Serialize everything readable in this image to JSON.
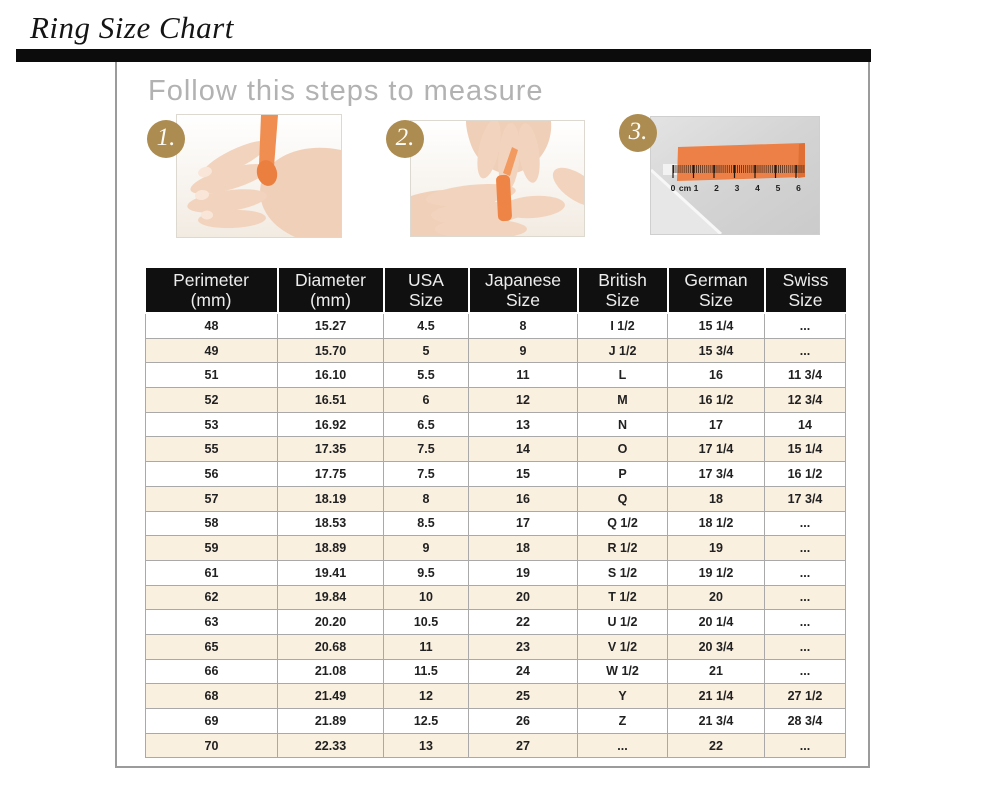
{
  "page": {
    "title": "Ring Size Chart"
  },
  "instructions": {
    "heading": "Follow this steps to measure",
    "steps": [
      {
        "number": "1.",
        "photo": "hand-with-paper-strip-around-finger"
      },
      {
        "number": "2.",
        "photo": "fingers-marking-paper-strip-overlap"
      },
      {
        "number": "3.",
        "photo": "paper-strip-measured-against-ruler",
        "ruler_labels": [
          "0",
          "cm",
          "1",
          "2",
          "3",
          "4",
          "5",
          "6"
        ]
      }
    ]
  },
  "table": {
    "headers": [
      [
        "Perimeter",
        "(mm)"
      ],
      [
        "Diameter",
        "(mm)"
      ],
      [
        "USA",
        "Size"
      ],
      [
        "Japanese",
        "Size"
      ],
      [
        "British",
        "Size"
      ],
      [
        "German",
        "Size"
      ],
      [
        "Swiss",
        "Size"
      ]
    ],
    "rows": [
      [
        "48",
        "15.27",
        "4.5",
        "8",
        "I 1/2",
        "15 1/4",
        "..."
      ],
      [
        "49",
        "15.70",
        "5",
        "9",
        "J 1/2",
        "15 3/4",
        "..."
      ],
      [
        "51",
        "16.10",
        "5.5",
        "11",
        "L",
        "16",
        "11 3/4"
      ],
      [
        "52",
        "16.51",
        "6",
        "12",
        "M",
        "16 1/2",
        "12 3/4"
      ],
      [
        "53",
        "16.92",
        "6.5",
        "13",
        "N",
        "17",
        "14"
      ],
      [
        "55",
        "17.35",
        "7.5",
        "14",
        "O",
        "17 1/4",
        "15 1/4"
      ],
      [
        "56",
        "17.75",
        "7.5",
        "15",
        "P",
        "17 3/4",
        "16 1/2"
      ],
      [
        "57",
        "18.19",
        "8",
        "16",
        "Q",
        "18",
        "17 3/4"
      ],
      [
        "58",
        "18.53",
        "8.5",
        "17",
        "Q 1/2",
        "18 1/2",
        "..."
      ],
      [
        "59",
        "18.89",
        "9",
        "18",
        "R 1/2",
        "19",
        "..."
      ],
      [
        "61",
        "19.41",
        "9.5",
        "19",
        "S 1/2",
        "19 1/2",
        "..."
      ],
      [
        "62",
        "19.84",
        "10",
        "20",
        "T 1/2",
        "20",
        "..."
      ],
      [
        "63",
        "20.20",
        "10.5",
        "22",
        "U 1/2",
        "20 1/4",
        "..."
      ],
      [
        "65",
        "20.68",
        "11",
        "23",
        "V 1/2",
        "20 3/4",
        "..."
      ],
      [
        "66",
        "21.08",
        "11.5",
        "24",
        "W 1/2",
        "21",
        "..."
      ],
      [
        "68",
        "21.49",
        "12",
        "25",
        "Y",
        "21 1/4",
        "27 1/2"
      ],
      [
        "69",
        "21.89",
        "12.5",
        "26",
        "Z",
        "21 3/4",
        "28 3/4"
      ],
      [
        "70",
        "22.33",
        "13",
        "27",
        "...",
        "22",
        "..."
      ]
    ]
  },
  "chart_data": {
    "type": "table",
    "title": "Ring Size Chart",
    "columns": [
      "Perimeter (mm)",
      "Diameter (mm)",
      "USA Size",
      "Japanese Size",
      "British Size",
      "German Size",
      "Swiss Size"
    ],
    "rows": [
      [
        "48",
        "15.27",
        "4.5",
        "8",
        "I 1/2",
        "15 1/4",
        "..."
      ],
      [
        "49",
        "15.70",
        "5",
        "9",
        "J 1/2",
        "15 3/4",
        "..."
      ],
      [
        "51",
        "16.10",
        "5.5",
        "11",
        "L",
        "16",
        "11 3/4"
      ],
      [
        "52",
        "16.51",
        "6",
        "12",
        "M",
        "16 1/2",
        "12 3/4"
      ],
      [
        "53",
        "16.92",
        "6.5",
        "13",
        "N",
        "17",
        "14"
      ],
      [
        "55",
        "17.35",
        "7.5",
        "14",
        "O",
        "17 1/4",
        "15 1/4"
      ],
      [
        "56",
        "17.75",
        "7.5",
        "15",
        "P",
        "17 3/4",
        "16 1/2"
      ],
      [
        "57",
        "18.19",
        "8",
        "16",
        "Q",
        "18",
        "17 3/4"
      ],
      [
        "58",
        "18.53",
        "8.5",
        "17",
        "Q 1/2",
        "18 1/2",
        "..."
      ],
      [
        "59",
        "18.89",
        "9",
        "18",
        "R 1/2",
        "19",
        "..."
      ],
      [
        "61",
        "19.41",
        "9.5",
        "19",
        "S 1/2",
        "19 1/2",
        "..."
      ],
      [
        "62",
        "19.84",
        "10",
        "20",
        "T 1/2",
        "20",
        "..."
      ],
      [
        "63",
        "20.20",
        "10.5",
        "22",
        "U 1/2",
        "20 1/4",
        "..."
      ],
      [
        "65",
        "20.68",
        "11",
        "23",
        "V 1/2",
        "20 3/4",
        "..."
      ],
      [
        "66",
        "21.08",
        "11.5",
        "24",
        "W 1/2",
        "21",
        "..."
      ],
      [
        "68",
        "21.49",
        "12",
        "25",
        "Y",
        "21 1/4",
        "27 1/2"
      ],
      [
        "69",
        "21.89",
        "12.5",
        "26",
        "Z",
        "21 3/4",
        "28 3/4"
      ],
      [
        "70",
        "22.33",
        "13",
        "27",
        "...",
        "22",
        "..."
      ]
    ]
  },
  "colors": {
    "bar": "#0c0c0c",
    "panel_border": "#9b9b9b",
    "heading_gray": "#b2b2b2",
    "badge": "#ac8c50",
    "header_bg": "#101010",
    "header_text": "#ededed",
    "row_alt_bg": "#faf0e0",
    "grid": "#a9a9a9",
    "tape_orange": "#ee8546"
  }
}
